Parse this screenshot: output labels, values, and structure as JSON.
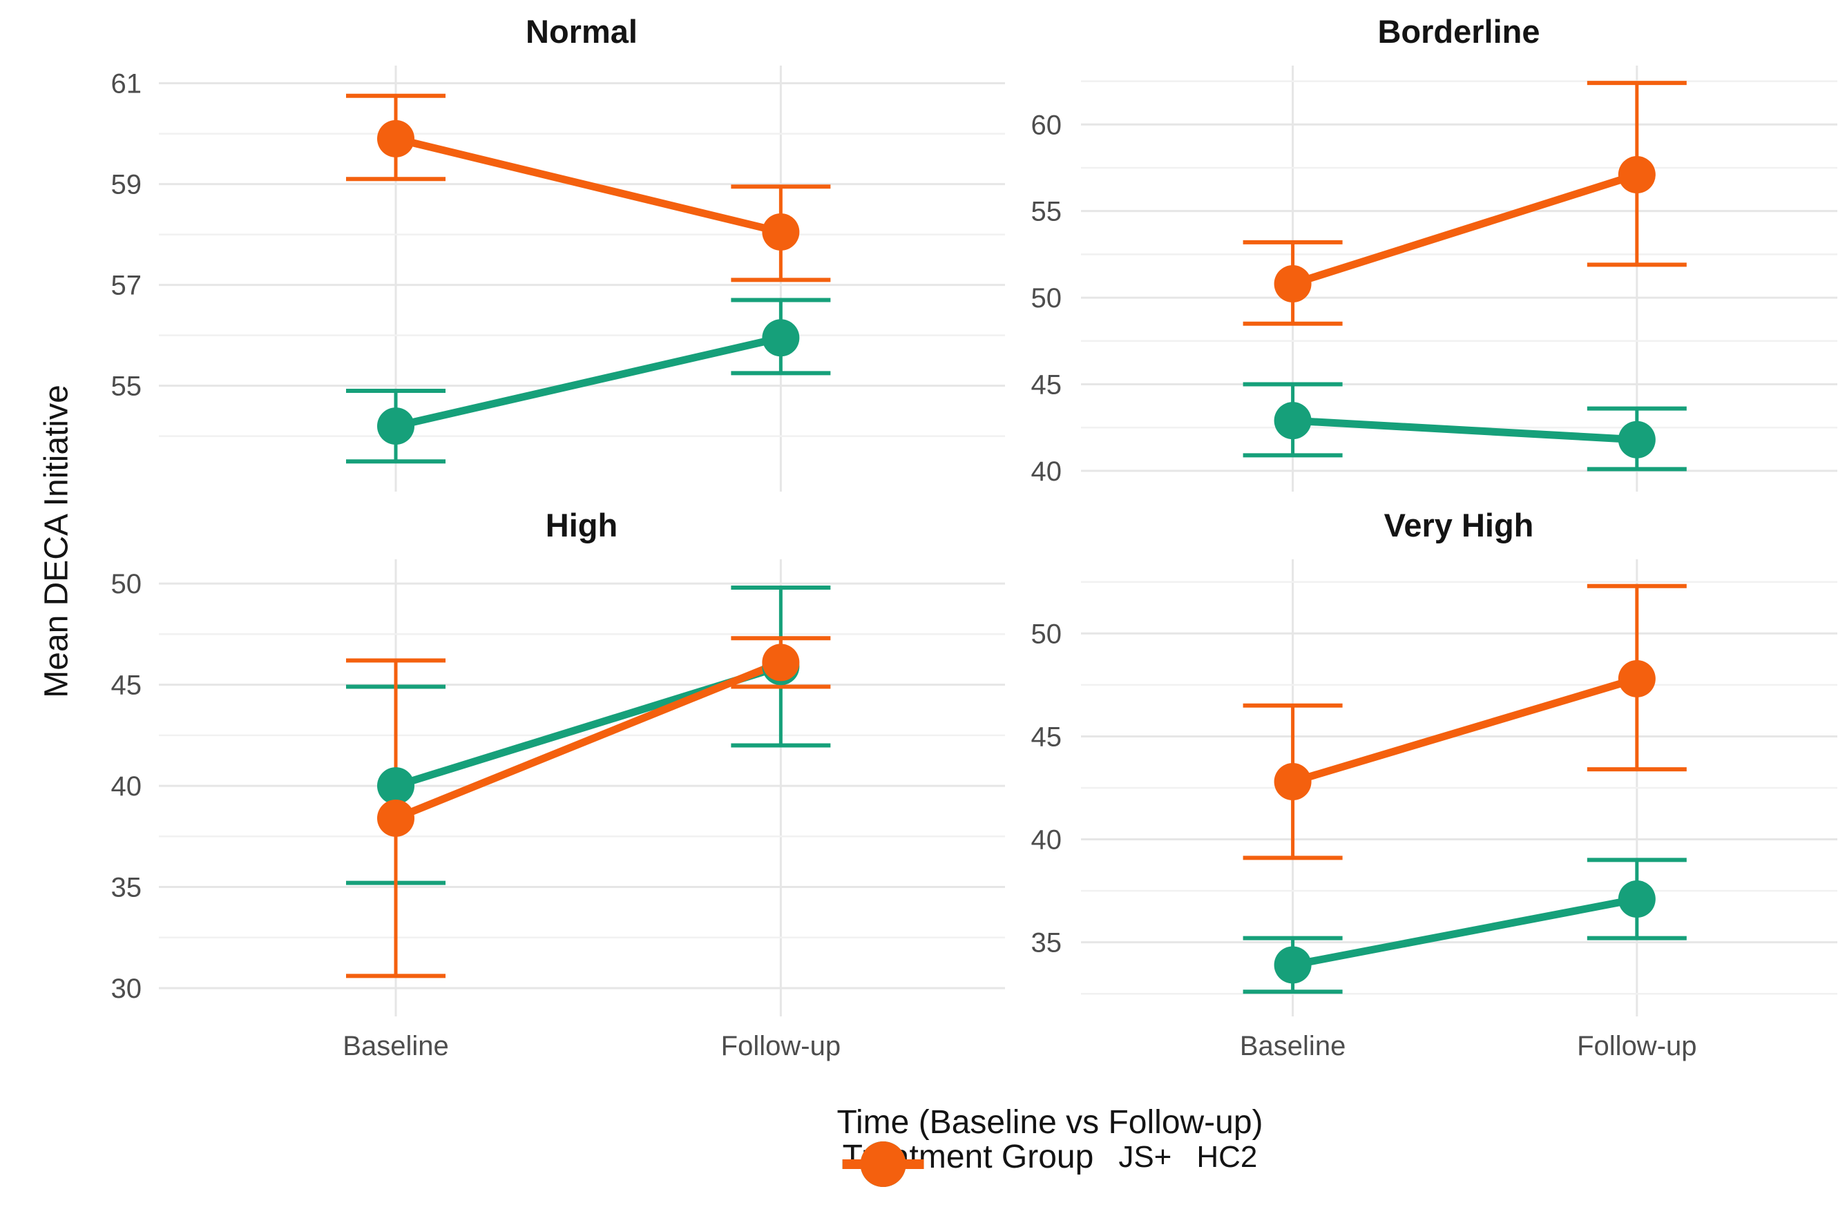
{
  "chart_data": {
    "type": "line",
    "description": "Faceted interaction plot: mean with error bars at two time points for two treatment groups",
    "categories": [
      "Baseline",
      "Follow-up"
    ],
    "xlabel": "Time (Baseline vs Follow-up)",
    "ylabel": "Mean DECA Initiative",
    "grid": "on",
    "legend": {
      "title": "Treatment Group",
      "position": "bottom",
      "entries": [
        {
          "label": "JS+",
          "color": "#16A07A"
        },
        {
          "label": "HC2",
          "color": "#F4600E"
        }
      ]
    },
    "facets": [
      {
        "title": "Normal",
        "ylim": [
          52.9,
          61.35
        ],
        "yticks": [
          61,
          59,
          57,
          55
        ],
        "yminor": [
          60,
          58,
          56,
          54
        ],
        "series": [
          {
            "name": "JS+",
            "means": [
              54.2,
              55.95
            ],
            "lo": [
              53.5,
              55.25
            ],
            "hi": [
              54.9,
              56.7
            ]
          },
          {
            "name": "HC2",
            "means": [
              59.9,
              58.05
            ],
            "lo": [
              59.1,
              57.1
            ],
            "hi": [
              60.75,
              58.95
            ]
          }
        ]
      },
      {
        "title": "Borderline",
        "ylim": [
          38.8,
          63.4
        ],
        "yticks": [
          60,
          55,
          50,
          45,
          40
        ],
        "yminor": [
          62.5,
          57.5,
          52.5,
          47.5,
          42.5
        ],
        "series": [
          {
            "name": "JS+",
            "means": [
              42.9,
              41.8
            ],
            "lo": [
              40.9,
              40.1
            ],
            "hi": [
              45.0,
              43.6
            ]
          },
          {
            "name": "HC2",
            "means": [
              50.8,
              57.1
            ],
            "lo": [
              48.5,
              51.9
            ],
            "hi": [
              53.2,
              62.4
            ]
          }
        ]
      },
      {
        "title": "High",
        "ylim": [
          28.6,
          51.2
        ],
        "yticks": [
          50,
          45,
          40,
          35,
          30
        ],
        "yminor": [
          47.5,
          42.5,
          37.5,
          32.5
        ],
        "series": [
          {
            "name": "JS+",
            "means": [
              40.0,
              45.9
            ],
            "lo": [
              35.2,
              42.0
            ],
            "hi": [
              44.9,
              49.8
            ]
          },
          {
            "name": "HC2",
            "means": [
              38.4,
              46.1
            ],
            "lo": [
              30.6,
              44.9
            ],
            "hi": [
              46.2,
              47.3
            ]
          }
        ]
      },
      {
        "title": "Very High",
        "ylim": [
          31.4,
          53.6
        ],
        "yticks": [
          50,
          45,
          40,
          35
        ],
        "yminor": [
          52.5,
          47.5,
          42.5,
          37.5,
          32.5
        ],
        "series": [
          {
            "name": "JS+",
            "means": [
              33.9,
              37.1
            ],
            "lo": [
              32.6,
              35.2
            ],
            "hi": [
              35.2,
              39.0
            ]
          },
          {
            "name": "HC2",
            "means": [
              42.8,
              47.8
            ],
            "lo": [
              39.1,
              43.4
            ],
            "hi": [
              46.5,
              52.3
            ]
          }
        ]
      }
    ]
  }
}
